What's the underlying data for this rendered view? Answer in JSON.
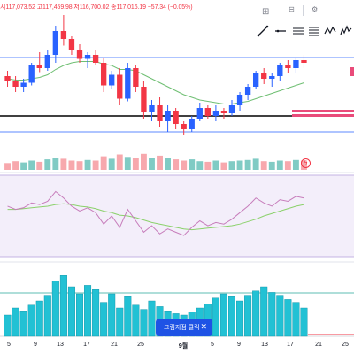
{
  "ohlc_line": "시117,073.52 고117,459.98 저116,700.02 종117,016.19 −57.34 (−0.05%)",
  "toolbar": {
    "grid_icon": "grid-icon",
    "tools": [
      "trend-line-icon",
      "horizontal-ray-icon",
      "parallel-channel-icon",
      "fib-retracement-icon",
      "pattern-icon",
      "elliott-wave-icon"
    ]
  },
  "toast": {
    "label": "그림지점 클릭",
    "close": "✕"
  },
  "date_axis": {
    "labels": [
      "5",
      "9",
      "13",
      "17",
      "21",
      "25",
      "9월",
      "5",
      "9",
      "13",
      "17",
      "21",
      "25"
    ],
    "month_label": "9월"
  },
  "colors": {
    "up": "#26a69a",
    "down": "#f23645",
    "up_blue": "#2962ff",
    "volume_up": "#80cbc4",
    "volume_down": "#f7a8ad",
    "rsi_line": "#c77dbb",
    "rsi_ma": "#8bd16b",
    "macd_hist": "#22c1d4",
    "ema": "#6fbf73"
  },
  "chart_data": {
    "type": "candlestick",
    "candles": [
      {
        "o": 52,
        "h": 56,
        "l": 44,
        "c": 48
      },
      {
        "o": 48,
        "h": 52,
        "l": 40,
        "c": 44
      },
      {
        "o": 44,
        "h": 50,
        "l": 40,
        "c": 47
      },
      {
        "o": 47,
        "h": 62,
        "l": 45,
        "c": 60
      },
      {
        "o": 60,
        "h": 70,
        "l": 55,
        "c": 58
      },
      {
        "o": 58,
        "h": 72,
        "l": 56,
        "c": 68
      },
      {
        "o": 68,
        "h": 90,
        "l": 62,
        "c": 86
      },
      {
        "o": 86,
        "h": 98,
        "l": 75,
        "c": 80
      },
      {
        "o": 80,
        "h": 82,
        "l": 68,
        "c": 72
      },
      {
        "o": 72,
        "h": 76,
        "l": 62,
        "c": 65
      },
      {
        "o": 65,
        "h": 70,
        "l": 58,
        "c": 68
      },
      {
        "o": 68,
        "h": 72,
        "l": 60,
        "c": 62
      },
      {
        "o": 62,
        "h": 66,
        "l": 40,
        "c": 45
      },
      {
        "o": 45,
        "h": 56,
        "l": 42,
        "c": 53
      },
      {
        "o": 53,
        "h": 58,
        "l": 30,
        "c": 35
      },
      {
        "o": 35,
        "h": 62,
        "l": 33,
        "c": 58
      },
      {
        "o": 58,
        "h": 60,
        "l": 40,
        "c": 44
      },
      {
        "o": 44,
        "h": 48,
        "l": 20,
        "c": 25
      },
      {
        "o": 25,
        "h": 34,
        "l": 18,
        "c": 30
      },
      {
        "o": 30,
        "h": 36,
        "l": 14,
        "c": 18
      },
      {
        "o": 18,
        "h": 30,
        "l": 10,
        "c": 26
      },
      {
        "o": 26,
        "h": 28,
        "l": 12,
        "c": 16
      },
      {
        "o": 16,
        "h": 18,
        "l": 8,
        "c": 12
      },
      {
        "o": 12,
        "h": 22,
        "l": 10,
        "c": 20
      },
      {
        "o": 20,
        "h": 32,
        "l": 18,
        "c": 28
      },
      {
        "o": 28,
        "h": 30,
        "l": 20,
        "c": 22
      },
      {
        "o": 22,
        "h": 30,
        "l": 18,
        "c": 26
      },
      {
        "o": 26,
        "h": 28,
        "l": 20,
        "c": 24
      },
      {
        "o": 24,
        "h": 34,
        "l": 22,
        "c": 30
      },
      {
        "o": 30,
        "h": 40,
        "l": 26,
        "c": 38
      },
      {
        "o": 38,
        "h": 46,
        "l": 34,
        "c": 44
      },
      {
        "o": 44,
        "h": 56,
        "l": 42,
        "c": 54
      },
      {
        "o": 54,
        "h": 58,
        "l": 46,
        "c": 50
      },
      {
        "o": 50,
        "h": 54,
        "l": 44,
        "c": 52
      },
      {
        "o": 52,
        "h": 62,
        "l": 48,
        "c": 60
      },
      {
        "o": 60,
        "h": 64,
        "l": 54,
        "c": 58
      },
      {
        "o": 58,
        "h": 66,
        "l": 54,
        "c": 64
      },
      {
        "o": 64,
        "h": 68,
        "l": 58,
        "c": 62
      }
    ],
    "price_range": [
      0,
      100
    ],
    "ema": [
      50,
      49,
      49,
      50,
      51,
      53,
      57,
      60,
      62,
      63,
      63,
      63,
      61,
      60,
      57,
      57,
      56,
      53,
      50,
      47,
      44,
      41,
      38,
      36,
      34,
      33,
      32,
      31,
      31,
      32,
      33,
      35,
      37,
      39,
      41,
      43,
      45,
      47
    ],
    "horizontal_lines": [
      {
        "price": 66,
        "color": "#2962ff"
      },
      {
        "price": 22,
        "color": "#000000"
      },
      {
        "price": 10,
        "color": "#2962ff"
      }
    ],
    "volume": [
      22,
      28,
      24,
      30,
      26,
      34,
      40,
      36,
      30,
      28,
      32,
      30,
      44,
      36,
      50,
      42,
      38,
      52,
      40,
      46,
      38,
      34,
      30,
      34,
      28,
      26,
      30,
      24,
      28,
      30,
      32,
      36,
      28,
      26,
      30,
      28,
      32,
      30
    ],
    "rsi": [
      62,
      58,
      60,
      66,
      64,
      68,
      80,
      72,
      62,
      56,
      60,
      54,
      40,
      50,
      36,
      58,
      44,
      30,
      38,
      28,
      34,
      30,
      26,
      36,
      44,
      38,
      42,
      40,
      46,
      54,
      62,
      72,
      66,
      62,
      70,
      68,
      74,
      72
    ],
    "rsi_ma": [
      58,
      58,
      59,
      60,
      61,
      62,
      64,
      65,
      64,
      62,
      61,
      59,
      56,
      54,
      51,
      50,
      48,
      45,
      42,
      40,
      38,
      36,
      34,
      33,
      34,
      35,
      36,
      37,
      38,
      40,
      43,
      46,
      50,
      53,
      56,
      59,
      62,
      64
    ],
    "rsi_range": [
      0,
      100
    ],
    "macd_hist": [
      30,
      40,
      36,
      44,
      50,
      58,
      78,
      86,
      70,
      60,
      72,
      66,
      48,
      60,
      40,
      56,
      44,
      38,
      50,
      42,
      36,
      32,
      30,
      34,
      40,
      46,
      54,
      60,
      56,
      50,
      58,
      64,
      70,
      62,
      58,
      52,
      48,
      40
    ],
    "macd_range": [
      0,
      100
    ]
  }
}
